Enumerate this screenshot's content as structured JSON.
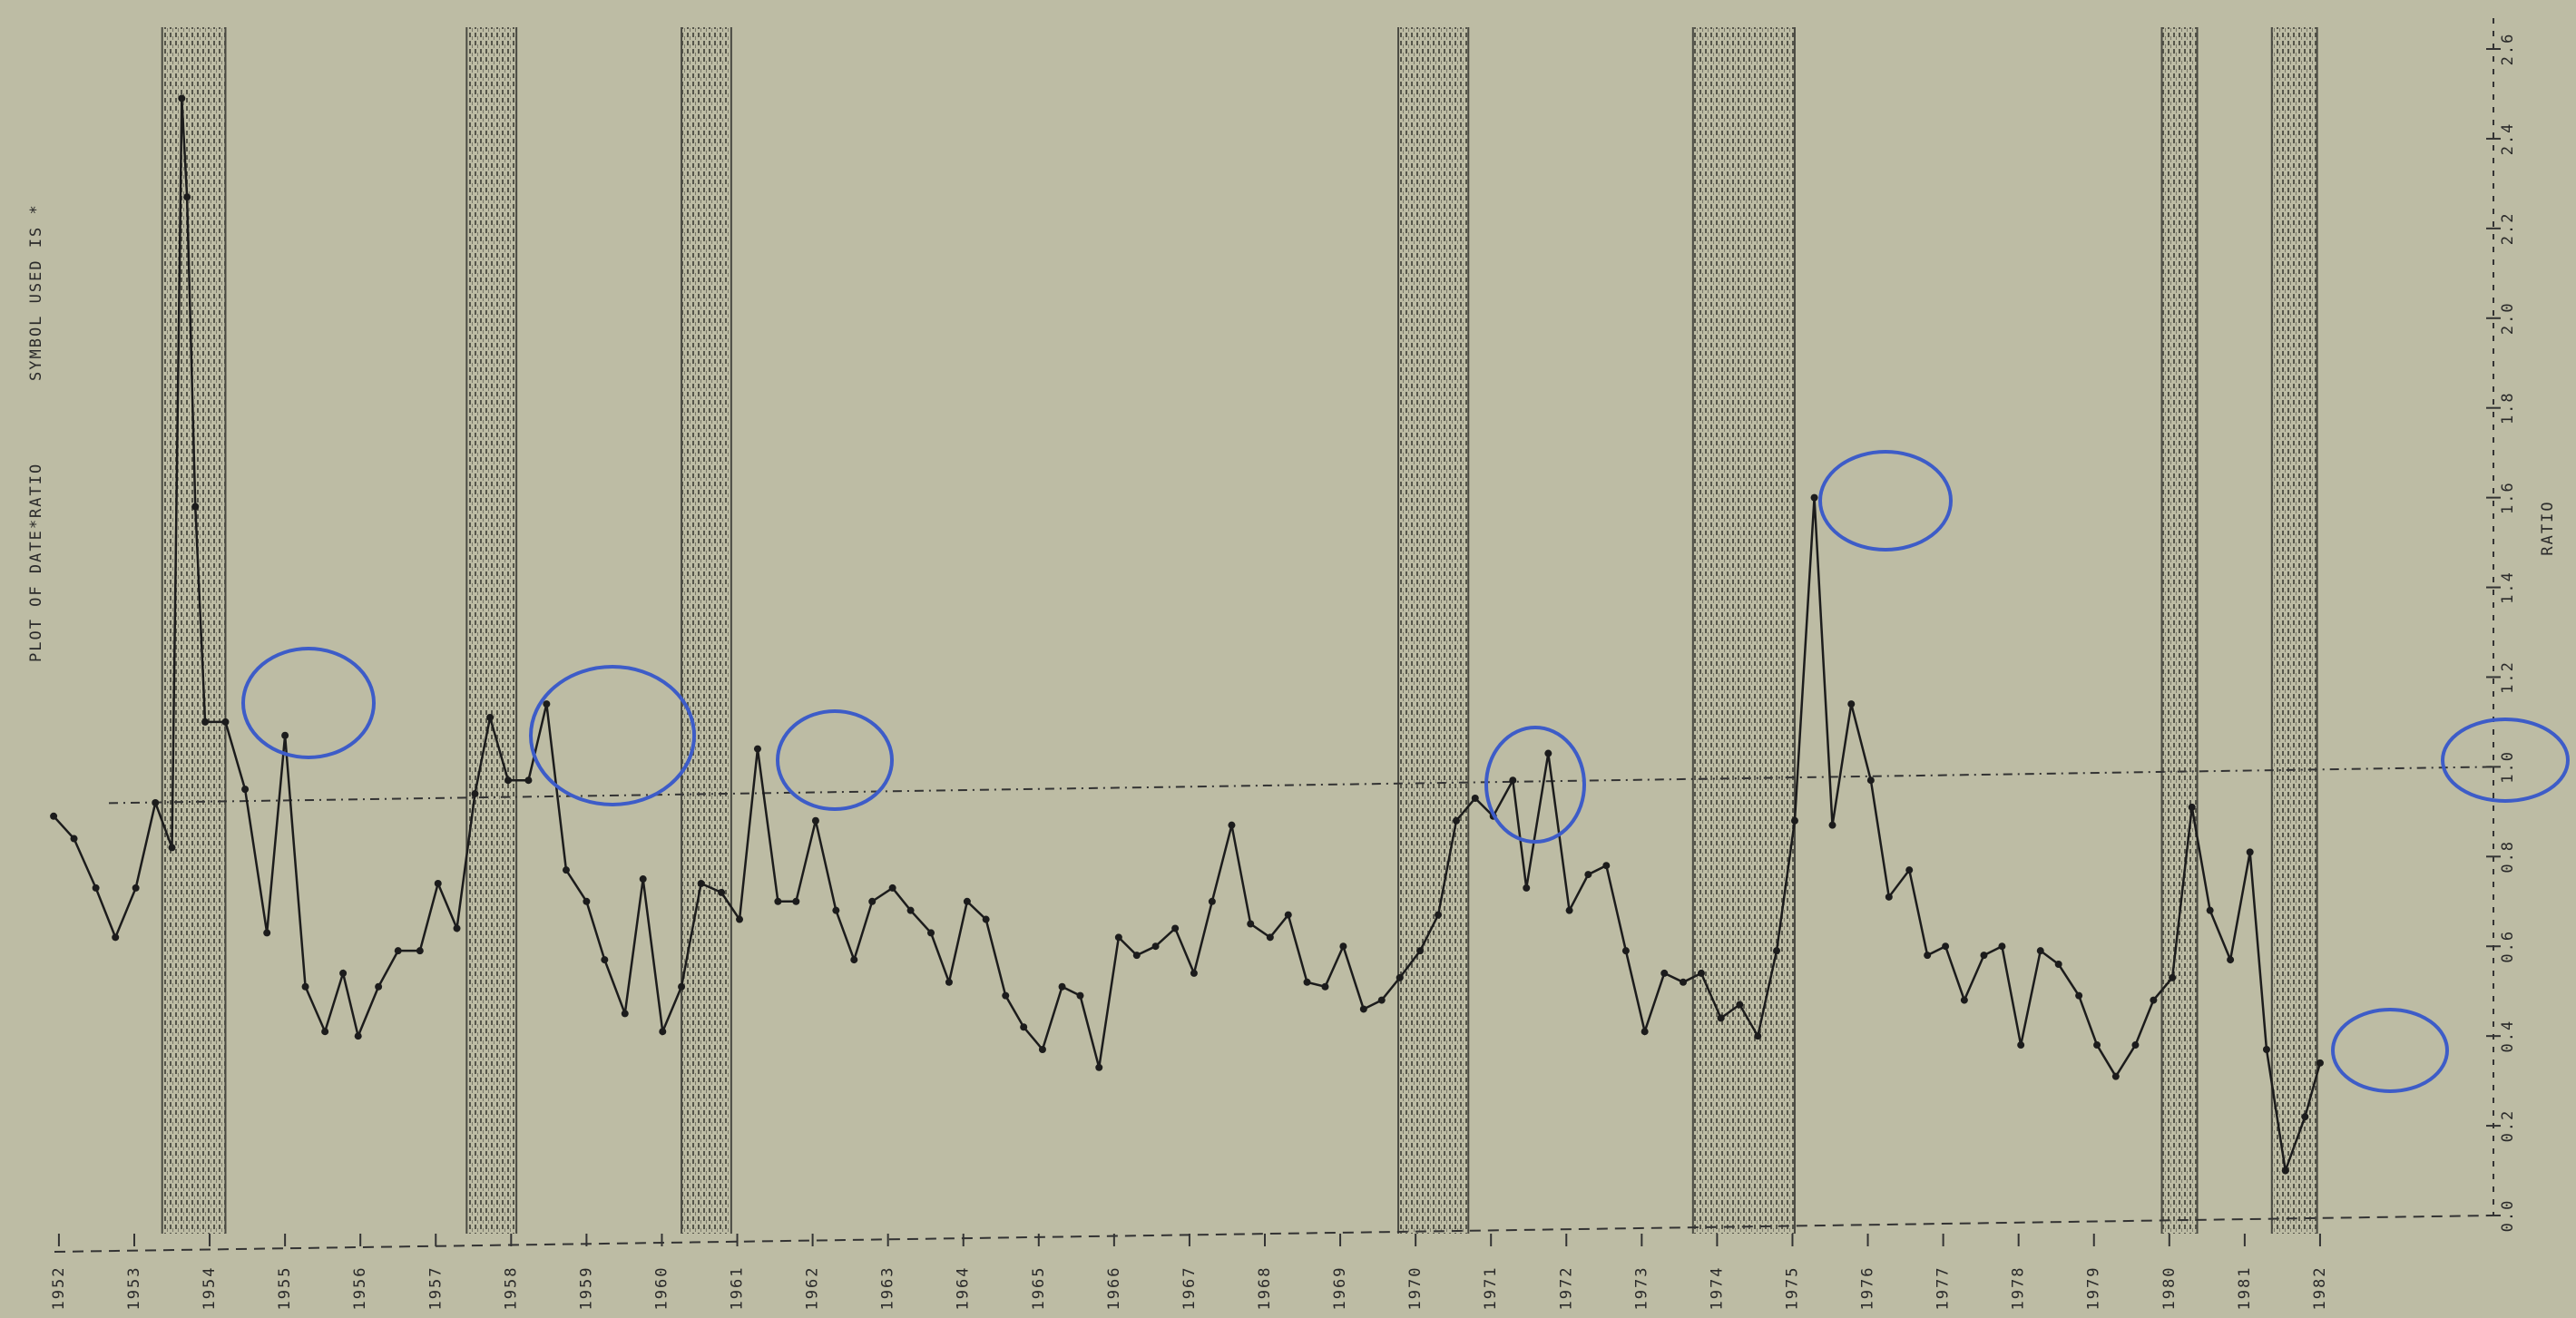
{
  "chart_data": {
    "type": "line",
    "title": "PLOT OF DATE*RATIO",
    "subtitle": "SYMBOL USED IS *",
    "y_label": "RATIO",
    "xlim": [
      1951.7,
      1984.3
    ],
    "ylim": [
      0,
      2.6
    ],
    "xticks": [
      1952,
      1953,
      1954,
      1955,
      1956,
      1957,
      1958,
      1959,
      1960,
      1961,
      1962,
      1963,
      1964,
      1965,
      1966,
      1967,
      1968,
      1969,
      1970,
      1971,
      1972,
      1973,
      1974,
      1975,
      1976,
      1977,
      1978,
      1979,
      1980,
      1981,
      1982
    ],
    "yticks": [
      {
        "value": 0,
        "label": "0.0"
      },
      0.2,
      0.4,
      0.6,
      0.8,
      {
        "value": 1,
        "label": "1.0"
      },
      1.2,
      1.4,
      1.6,
      1.8,
      {
        "value": 2,
        "label": "2.0"
      },
      2.2,
      2.4,
      2.6
    ],
    "reference_line": 1,
    "shaded_periods": [
      {
        "start": 1953.37,
        "end": 1954.21
      },
      {
        "start": 1957.41,
        "end": 1958.07
      },
      {
        "start": 1960.26,
        "end": 1960.92
      },
      {
        "start": 1969.77,
        "end": 1970.7
      },
      {
        "start": 1973.68,
        "end": 1975.03
      },
      {
        "start": 1979.9,
        "end": 1980.37
      },
      {
        "start": 1981.36,
        "end": 1981.96
      }
    ],
    "shade_color": "#4a4a42",
    "series": [
      {
        "color": "#1c1c1c",
        "x": [
          1951.93,
          1952.2,
          1952.49,
          1952.75,
          1953.02,
          1953.28,
          1953.5,
          1953.63,
          1953.7,
          1953.81,
          1953.94,
          1954.21,
          1954.47,
          1954.76,
          1955.0,
          1955.27,
          1955.53,
          1955.77,
          1955.97,
          1956.24,
          1956.5,
          1956.79,
          1957.03,
          1957.28,
          1957.52,
          1957.72,
          1957.96,
          1958.23,
          1958.47,
          1958.73,
          1959.0,
          1959.24,
          1959.51,
          1959.75,
          1960.01,
          1960.26,
          1960.52,
          1960.79,
          1961.03,
          1961.27,
          1961.54,
          1961.78,
          1962.04,
          1962.31,
          1962.55,
          1962.79,
          1963.06,
          1963.3,
          1963.57,
          1963.81,
          1964.05,
          1964.3,
          1964.56,
          1964.8,
          1965.05,
          1965.31,
          1965.55,
          1965.8,
          1966.06,
          1966.3,
          1966.55,
          1966.81,
          1967.06,
          1967.3,
          1967.56,
          1967.81,
          1968.07,
          1968.31,
          1968.56,
          1968.8,
          1969.04,
          1969.31,
          1969.55,
          1969.79,
          1970.06,
          1970.3,
          1970.54,
          1970.79,
          1971.03,
          1971.29,
          1971.47,
          1971.76,
          1972.04,
          1972.29,
          1972.53,
          1972.79,
          1973.04,
          1973.3,
          1973.55,
          1973.79,
          1974.05,
          1974.3,
          1974.54,
          1974.79,
          1975.03,
          1975.29,
          1975.53,
          1975.78,
          1976.04,
          1976.28,
          1976.55,
          1976.79,
          1977.03,
          1977.28,
          1977.54,
          1977.78,
          1978.03,
          1978.29,
          1978.53,
          1978.8,
          1979.04,
          1979.29,
          1979.55,
          1979.79,
          1980.04,
          1980.3,
          1980.54,
          1980.81,
          1981.07,
          1981.29,
          1981.54,
          1981.8,
          1982.0
        ],
        "values": [
          0.89,
          0.84,
          0.73,
          0.62,
          0.73,
          0.92,
          0.82,
          2.49,
          2.27,
          1.58,
          1.1,
          1.1,
          0.95,
          0.63,
          1.07,
          0.51,
          0.41,
          0.54,
          0.4,
          0.51,
          0.59,
          0.59,
          0.74,
          0.64,
          0.94,
          1.11,
          0.97,
          0.97,
          1.14,
          0.77,
          0.7,
          0.57,
          0.45,
          0.75,
          0.41,
          0.51,
          0.74,
          0.72,
          0.66,
          1.04,
          0.7,
          0.7,
          0.88,
          0.68,
          0.57,
          0.7,
          0.73,
          0.68,
          0.63,
          0.52,
          0.7,
          0.66,
          0.49,
          0.42,
          0.37,
          0.51,
          0.49,
          0.33,
          0.62,
          0.58,
          0.6,
          0.64,
          0.54,
          0.7,
          0.87,
          0.65,
          0.62,
          0.67,
          0.52,
          0.51,
          0.6,
          0.46,
          0.48,
          0.53,
          0.59,
          0.67,
          0.88,
          0.93,
          0.89,
          0.97,
          0.73,
          1.03,
          0.68,
          0.76,
          0.78,
          0.59,
          0.41,
          0.54,
          0.52,
          0.54,
          0.44,
          0.47,
          0.4,
          0.59,
          0.88,
          1.6,
          0.87,
          1.14,
          0.97,
          0.71,
          0.77,
          0.58,
          0.6,
          0.48,
          0.58,
          0.6,
          0.38,
          0.59,
          0.56,
          0.49,
          0.38,
          0.31,
          0.38,
          0.48,
          0.53,
          0.91,
          0.68,
          0.57,
          0.81,
          0.37,
          0.1,
          0.22,
          0.34
        ]
      }
    ]
  }
}
